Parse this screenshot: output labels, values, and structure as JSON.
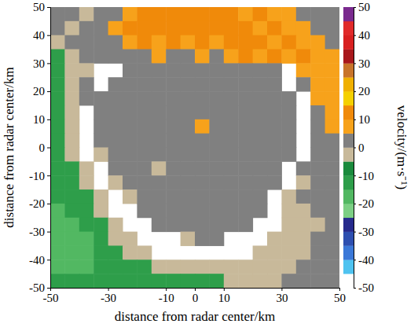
{
  "chart_data": {
    "type": "heatmap",
    "xlabel": "distance from radar center/km",
    "ylabel": "distance from radar center/km",
    "xlim": [
      -50,
      50
    ],
    "ylim": [
      -50,
      50
    ],
    "xticks": [
      -50,
      -30,
      -10,
      0,
      10,
      30,
      50
    ],
    "yticks": [
      -50,
      -40,
      -30,
      -20,
      -10,
      0,
      10,
      20,
      30,
      40,
      50
    ],
    "x": [
      -47.5,
      -42.5,
      -37.5,
      -32.5,
      -27.5,
      -22.5,
      -17.5,
      -12.5,
      -7.5,
      -2.5,
      2.5,
      7.5,
      12.5,
      17.5,
      22.5,
      27.5,
      32.5,
      37.5,
      42.5,
      47.5
    ],
    "y": [
      47.5,
      42.5,
      37.5,
      32.5,
      27.5,
      22.5,
      17.5,
      12.5,
      7.5,
      2.5,
      -2.5,
      -7.5,
      -12.5,
      -17.5,
      -22.5,
      -27.5,
      -32.5,
      -37.5,
      -42.5,
      -47.5
    ],
    "values": [
      [
        2,
        2,
        -3,
        2,
        2,
        8,
        10,
        12,
        10,
        12,
        10,
        12,
        10,
        8,
        10,
        8,
        8,
        2,
        2,
        2
      ],
      [
        2,
        -3,
        2,
        2,
        8,
        10,
        12,
        12,
        10,
        12,
        12,
        10,
        12,
        10,
        8,
        10,
        8,
        8,
        2,
        2
      ],
      [
        -3,
        2,
        2,
        2,
        2,
        8,
        10,
        8,
        10,
        8,
        10,
        8,
        10,
        12,
        10,
        8,
        10,
        8,
        8,
        2
      ],
      [
        -12,
        -3,
        2,
        2,
        2,
        2,
        2,
        8,
        2,
        2,
        8,
        2,
        8,
        10,
        8,
        10,
        8,
        10,
        8,
        8
      ],
      [
        -12,
        -3,
        -3,
        null,
        null,
        2,
        2,
        2,
        2,
        2,
        2,
        2,
        2,
        2,
        2,
        2,
        null,
        8,
        8,
        8
      ],
      [
        -12,
        -3,
        2,
        null,
        2,
        2,
        2,
        2,
        2,
        2,
        2,
        2,
        2,
        2,
        2,
        2,
        null,
        2,
        8,
        8
      ],
      [
        -12,
        -3,
        2,
        2,
        2,
        2,
        2,
        2,
        2,
        2,
        2,
        2,
        2,
        2,
        2,
        2,
        2,
        null,
        8,
        8
      ],
      [
        -12,
        -3,
        null,
        2,
        2,
        2,
        2,
        2,
        2,
        2,
        2,
        2,
        2,
        2,
        2,
        2,
        2,
        null,
        2,
        8
      ],
      [
        -12,
        -3,
        null,
        2,
        2,
        2,
        2,
        2,
        2,
        2,
        8,
        2,
        2,
        2,
        2,
        2,
        2,
        null,
        2,
        8
      ],
      [
        -12,
        -3,
        null,
        2,
        2,
        2,
        2,
        2,
        2,
        2,
        2,
        2,
        2,
        2,
        2,
        2,
        2,
        null,
        2,
        2
      ],
      [
        -12,
        -3,
        null,
        -3,
        2,
        2,
        2,
        2,
        2,
        2,
        2,
        2,
        2,
        2,
        2,
        2,
        2,
        null,
        2,
        2
      ],
      [
        -12,
        -12,
        -3,
        null,
        2,
        2,
        2,
        -3,
        2,
        2,
        2,
        2,
        2,
        2,
        2,
        2,
        null,
        2,
        2,
        2
      ],
      [
        -12,
        -12,
        -3,
        null,
        -3,
        2,
        2,
        2,
        2,
        2,
        2,
        2,
        2,
        2,
        2,
        2,
        null,
        -3,
        2,
        2
      ],
      [
        -12,
        -12,
        -12,
        -3,
        null,
        -3,
        2,
        2,
        2,
        2,
        2,
        2,
        2,
        2,
        2,
        null,
        -3,
        2,
        2,
        2
      ],
      [
        -18,
        -12,
        -12,
        -3,
        null,
        null,
        2,
        2,
        2,
        2,
        2,
        2,
        2,
        2,
        2,
        null,
        -3,
        -3,
        2,
        2
      ],
      [
        -18,
        -18,
        -12,
        -12,
        -3,
        null,
        null,
        2,
        2,
        2,
        2,
        2,
        2,
        2,
        null,
        null,
        -3,
        -3,
        -3,
        2
      ],
      [
        -18,
        -18,
        -18,
        -12,
        -3,
        -3,
        null,
        null,
        null,
        -3,
        2,
        2,
        null,
        null,
        null,
        -3,
        -3,
        -3,
        2,
        2
      ],
      [
        -18,
        -18,
        -18,
        -12,
        -12,
        -3,
        -3,
        null,
        null,
        null,
        null,
        null,
        null,
        null,
        -3,
        -3,
        -3,
        -3,
        2,
        2
      ],
      [
        -18,
        -18,
        -18,
        -12,
        -12,
        -12,
        -12,
        -3,
        -3,
        -3,
        -3,
        -3,
        -3,
        -3,
        -3,
        -3,
        -3,
        2,
        2,
        2
      ],
      [
        -12,
        -12,
        -12,
        -12,
        -12,
        -12,
        -12,
        -12,
        -12,
        -12,
        -12,
        -12,
        -3,
        -3,
        -3,
        -3,
        2,
        2,
        2,
        2
      ]
    ],
    "colorbar": {
      "label": "velocity/(m·s⁻¹)",
      "lim": [
        -50,
        50
      ],
      "ticks": [
        50,
        40,
        30,
        20,
        10,
        0,
        -10,
        -20,
        -30,
        -40,
        -50
      ],
      "bounds": [
        -50,
        -45,
        -40,
        -35,
        -30,
        -25,
        -20,
        -15,
        -10,
        -5,
        0,
        5,
        10,
        15,
        20,
        25,
        30,
        35,
        40,
        45,
        50
      ],
      "colors": [
        "#ffffff",
        "#4fc3f0",
        "#3b78d8",
        "#2e4fb0",
        "#262a8c",
        "#7ccf84",
        "#52b862",
        "#2e9e4a",
        "#1a8a3c",
        "#c8b99a",
        "#808080",
        "#f7a21b",
        "#f08a0a",
        "#f5d000",
        "#f0b000",
        "#c8742a",
        "#a8181c",
        "#d82020",
        "#e02a2a",
        "#7a2a8e"
      ]
    }
  }
}
